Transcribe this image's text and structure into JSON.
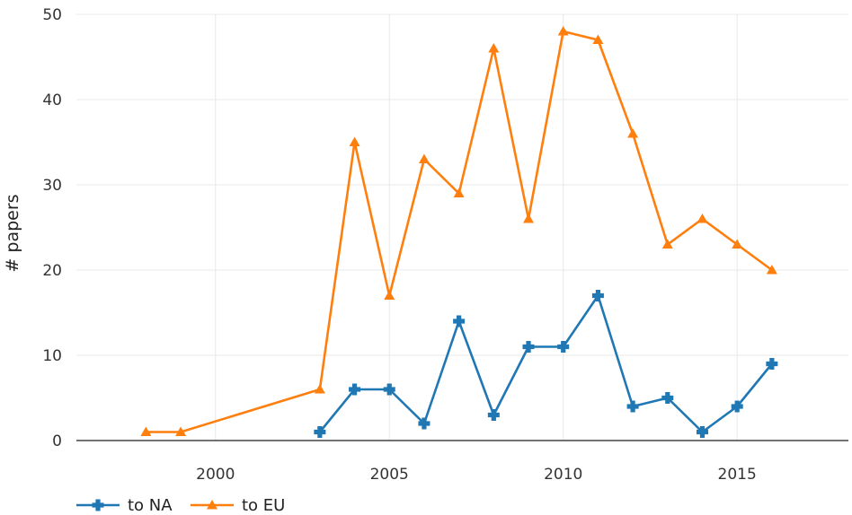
{
  "chart_data": {
    "type": "line",
    "title": "",
    "xlabel": "",
    "ylabel": "# papers",
    "xlim": [
      1996,
      2018.2
    ],
    "ylim": [
      0,
      50
    ],
    "x_ticks": [
      2000,
      2005,
      2010,
      2015
    ],
    "y_ticks": [
      0,
      10,
      20,
      30,
      40,
      50
    ],
    "grid": true,
    "legend_position": "bottom-left",
    "series": [
      {
        "name": "to NA",
        "color": "#1f77b4",
        "marker": "cross",
        "x": [
          2003,
          2004,
          2005,
          2006,
          2007,
          2008,
          2009,
          2010,
          2011,
          2012,
          2013,
          2014,
          2015,
          2016
        ],
        "y": [
          1,
          6,
          6,
          2,
          14,
          3,
          11,
          11,
          17,
          4,
          5,
          1,
          4,
          9
        ]
      },
      {
        "name": "to EU",
        "color": "#ff7f0e",
        "marker": "triangle-up",
        "x": [
          1998,
          1999,
          2003,
          2004,
          2005,
          2006,
          2007,
          2008,
          2009,
          2010,
          2011,
          2012,
          2013,
          2014,
          2015,
          2016
        ],
        "y": [
          1,
          1,
          6,
          35,
          17,
          33,
          29,
          46,
          26,
          48,
          47,
          36,
          23,
          26,
          23,
          20
        ]
      }
    ]
  }
}
